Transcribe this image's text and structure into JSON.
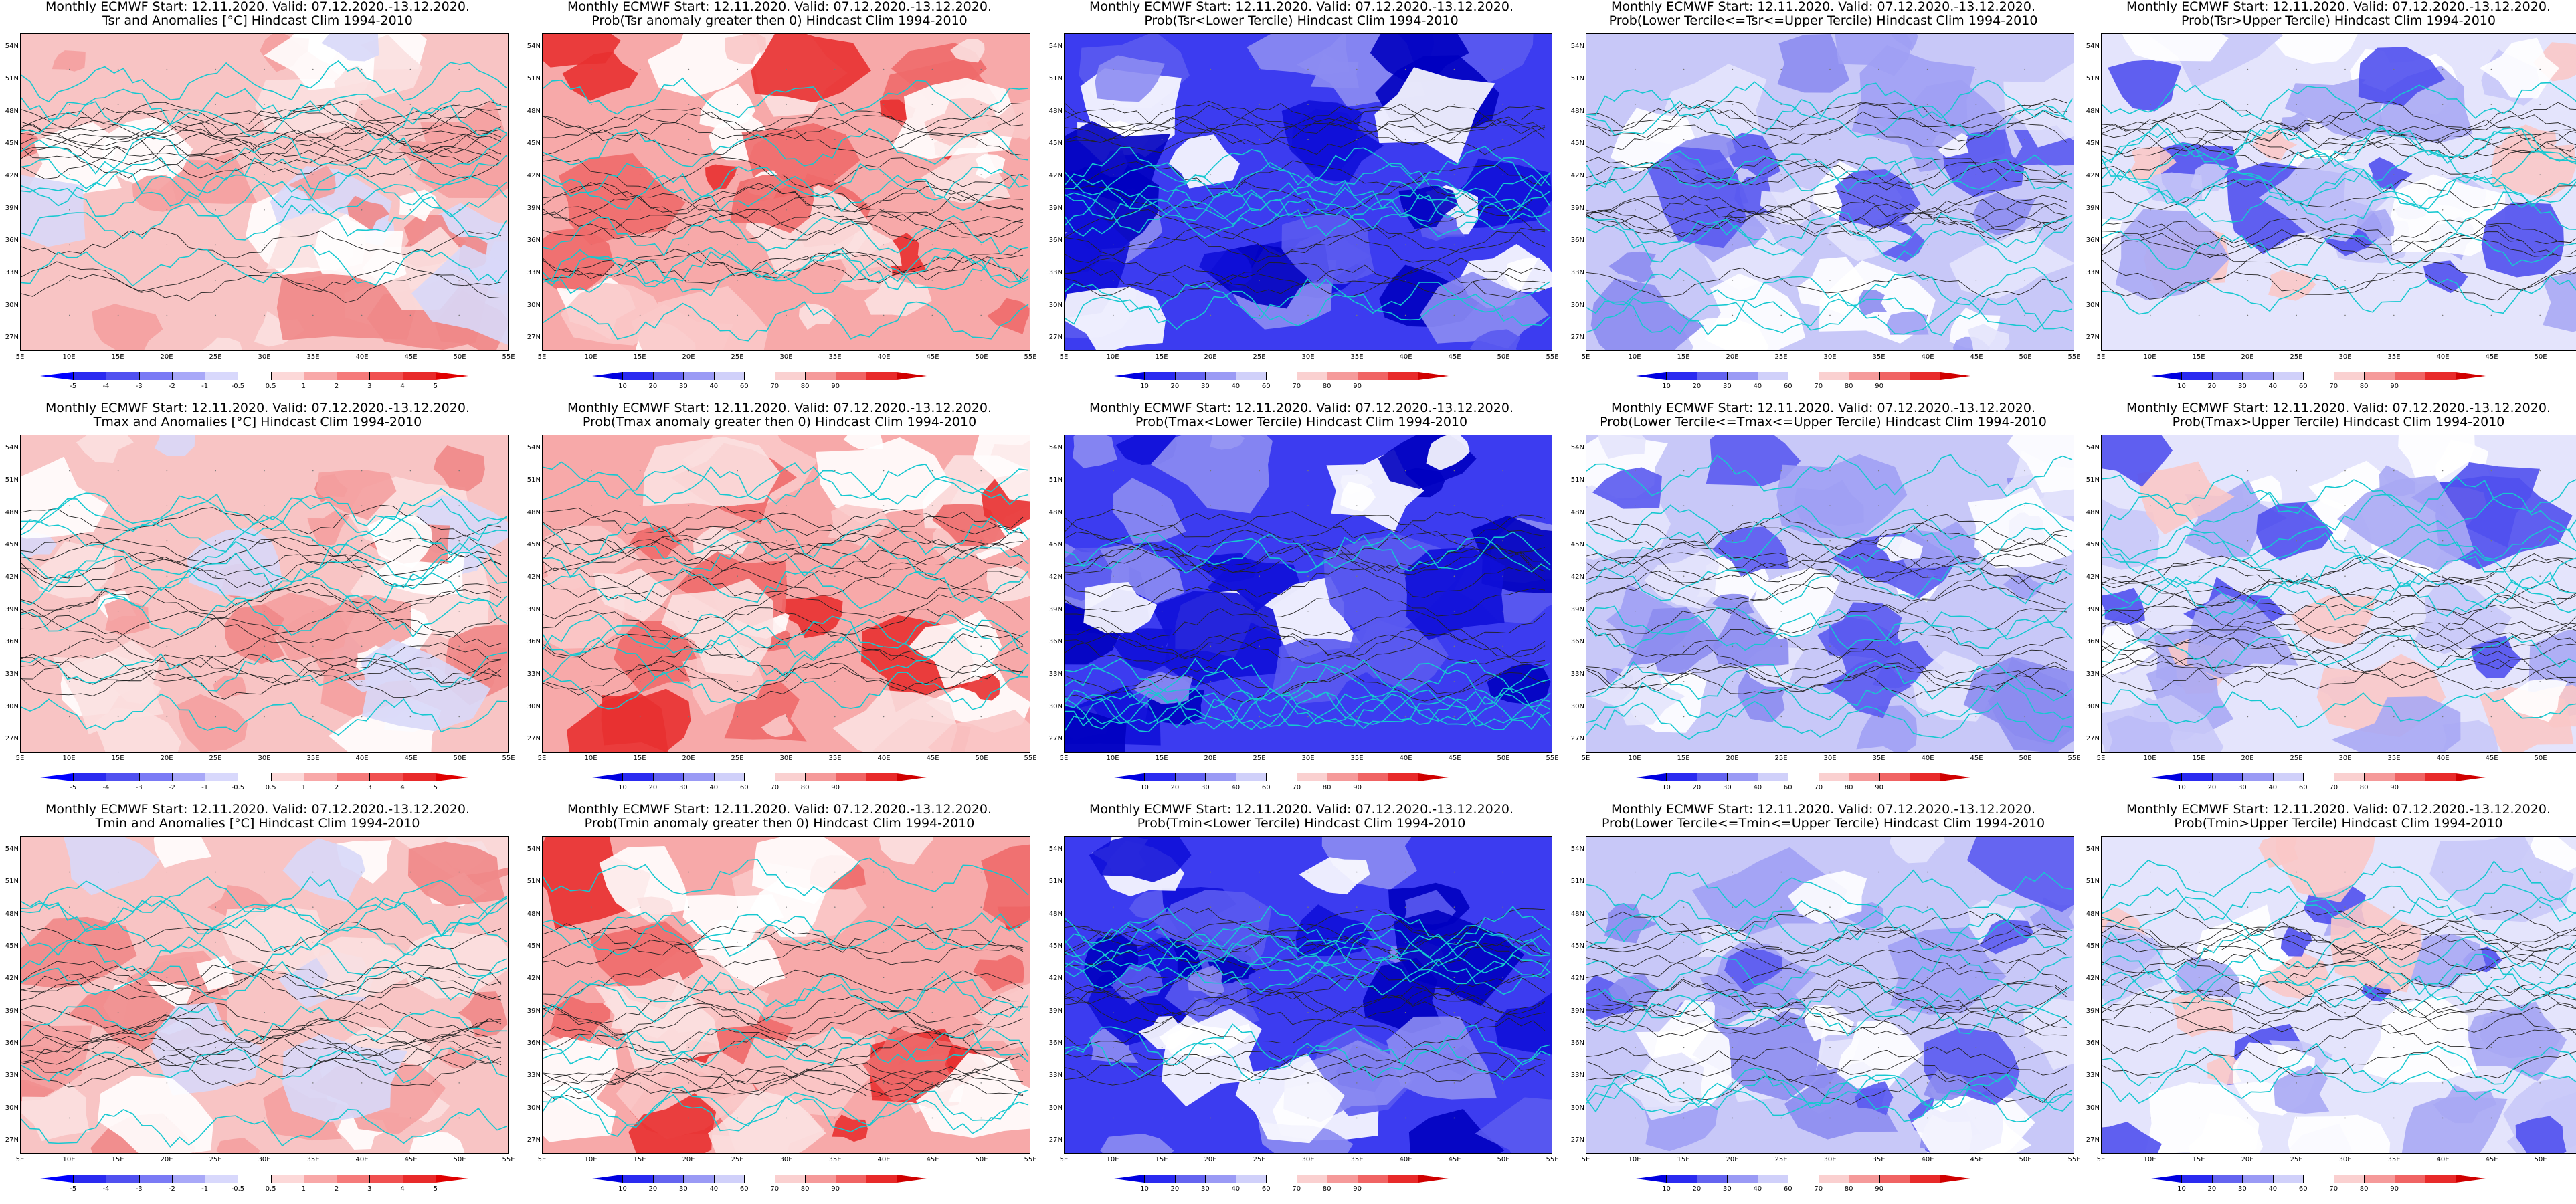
{
  "common_title": "Monthly ECMWF Start: 12.11.2020. Valid: 07.12.2020.-13.12.2020.",
  "lat_labels": [
    "54N",
    "51N",
    "48N",
    "45N",
    "42N",
    "39N",
    "36N",
    "33N",
    "30N",
    "27N"
  ],
  "lon_labels": [
    "5E",
    "10E",
    "15E",
    "20E",
    "25E",
    "30E",
    "35E",
    "40E",
    "45E",
    "50E",
    "55E"
  ],
  "colorbars": {
    "anomaly": {
      "labels": [
        "-5",
        "-4",
        "-3",
        "-2",
        "-1",
        "-0.5",
        "0.5",
        "1",
        "2",
        "3",
        "4",
        "5"
      ],
      "colors": [
        "#0000ff",
        "#2a2af0",
        "#5050f0",
        "#7a7af5",
        "#a8a8f8",
        "#d8d8fc",
        "#ffffff",
        "#fcd8d8",
        "#f8a8a8",
        "#f57a7a",
        "#f05050",
        "#e82a2a",
        "#e00000"
      ]
    },
    "prob": {
      "labels": [
        "10",
        "20",
        "30",
        "40",
        "60",
        "70",
        "80",
        "90"
      ],
      "colors": [
        "#0000e0",
        "#2a2af0",
        "#6464f0",
        "#9a9af5",
        "#d0d0fa",
        "#ffffff",
        "#fad0d0",
        "#f59a9a",
        "#f06464",
        "#e82a2a",
        "#d00000"
      ]
    }
  },
  "panels": [
    {
      "subtitle": "Tsr and Anomalies [°C] Hindcast Clim 1994-2010",
      "scheme": "anom_mild",
      "cbar": "anomaly"
    },
    {
      "subtitle": "Prob(Tsr anomaly greater then 0) Hindcast Clim 1994-2010",
      "scheme": "prob_red",
      "cbar": "prob"
    },
    {
      "subtitle": "Prob(Tsr<Lower Tercile) Hindcast Clim 1994-2010",
      "scheme": "deep_blue",
      "cbar": "prob"
    },
    {
      "subtitle": "Prob(Lower Tercile<=Tsr<=Upper Tercile) Hindcast Clim 1994-2010",
      "scheme": "mid_blue",
      "cbar": "prob"
    },
    {
      "subtitle": "Prob(Tsr>Upper Tercile) Hindcast Clim 1994-2010",
      "scheme": "light_blue",
      "cbar": "prob"
    },
    {
      "subtitle": "Tmax and Anomalies [°C] Hindcast Clim 1994-2010",
      "scheme": "anom_mild",
      "cbar": "anomaly"
    },
    {
      "subtitle": "Prob(Tmax anomaly greater then 0) Hindcast Clim 1994-2010",
      "scheme": "prob_red",
      "cbar": "prob"
    },
    {
      "subtitle": "Prob(Tmax<Lower Tercile) Hindcast Clim 1994-2010",
      "scheme": "deep_blue",
      "cbar": "prob"
    },
    {
      "subtitle": "Prob(Lower Tercile<=Tmax<=Upper Tercile) Hindcast Clim 1994-2010",
      "scheme": "mid_blue",
      "cbar": "prob"
    },
    {
      "subtitle": "Prob(Tmax>Upper Tercile) Hindcast Clim 1994-2010",
      "scheme": "light_blue",
      "cbar": "prob"
    },
    {
      "subtitle": "Tmin and Anomalies [°C] Hindcast Clim 1994-2010",
      "scheme": "anom_mild",
      "cbar": "anomaly"
    },
    {
      "subtitle": "Prob(Tmin anomaly greater then 0) Hindcast Clim 1994-2010",
      "scheme": "prob_red",
      "cbar": "prob"
    },
    {
      "subtitle": "Prob(Tmin<Lower Tercile) Hindcast Clim 1994-2010",
      "scheme": "deep_blue",
      "cbar": "prob"
    },
    {
      "subtitle": "Prob(Lower Tercile<=Tmin<=Upper Tercile) Hindcast Clim 1994-2010",
      "scheme": "mid_blue",
      "cbar": "prob"
    },
    {
      "subtitle": "Prob(Tmin>Upper Tercile) Hindcast Clim 1994-2010",
      "scheme": "light_blue",
      "cbar": "prob"
    }
  ],
  "schemes": {
    "anom_mild": {
      "base": "#f8c4c4",
      "blobs": [
        "#f4a0a0",
        "#ffffff",
        "#fbe0e0",
        "#f08888",
        "#d8d8f8"
      ]
    },
    "prob_red": {
      "base": "#f7a9a9",
      "blobs": [
        "#ee6a6a",
        "#ffffff",
        "#f9c8c8",
        "#e83030",
        "#fbe0e0"
      ]
    },
    "deep_blue": {
      "base": "#3c3cf0",
      "blobs": [
        "#1010d8",
        "#8c8cf2",
        "#ffffff",
        "#5a5af0",
        "#0000c0"
      ]
    },
    "mid_blue": {
      "base": "#c8c8f8",
      "blobs": [
        "#8c8cf0",
        "#ffffff",
        "#5a5af0",
        "#e4e4fc",
        "#a0a0f4"
      ]
    },
    "light_blue": {
      "base": "#e4e4fc",
      "blobs": [
        "#ffffff",
        "#a8a8f4",
        "#5050ee",
        "#f9c8c8",
        "#c8c8f8"
      ]
    }
  }
}
